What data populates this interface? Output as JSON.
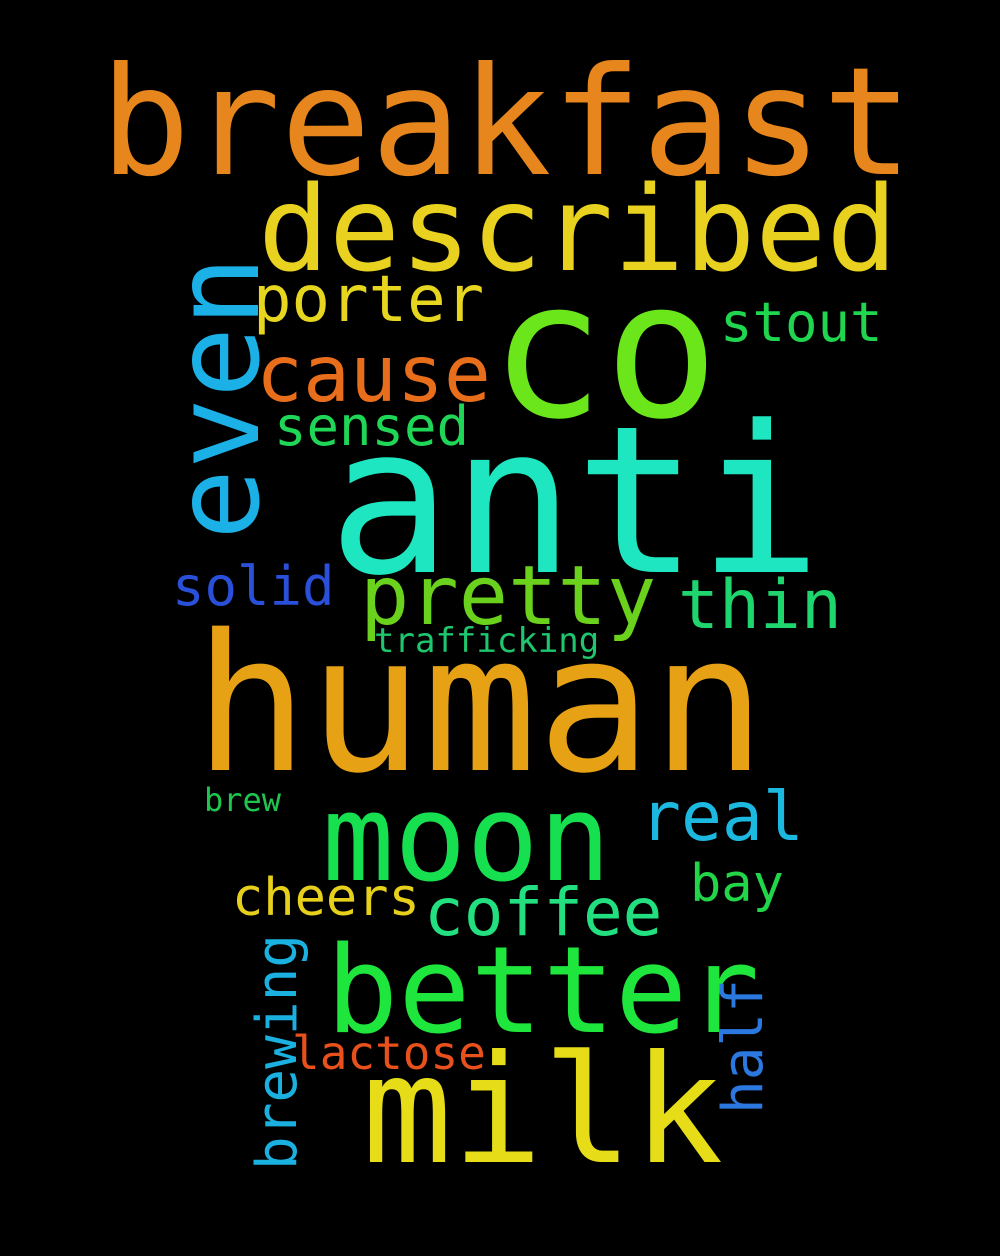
{
  "words": [
    {
      "text": "breakfast",
      "color": "#e6861c",
      "orientation": "horizontal"
    },
    {
      "text": "described",
      "color": "#e8d11f",
      "orientation": "horizontal"
    },
    {
      "text": "even",
      "color": "#1cb1e6",
      "orientation": "vertical"
    },
    {
      "text": "co",
      "color": "#6ae61a",
      "orientation": "horizontal"
    },
    {
      "text": "porter",
      "color": "#e6d61f",
      "orientation": "horizontal"
    },
    {
      "text": "stout",
      "color": "#20d64f",
      "orientation": "horizontal"
    },
    {
      "text": "cause",
      "color": "#e86e1c",
      "orientation": "horizontal"
    },
    {
      "text": "sensed",
      "color": "#1fd656",
      "orientation": "horizontal"
    },
    {
      "text": "anti",
      "color": "#1ee6c0",
      "orientation": "horizontal"
    },
    {
      "text": "solid",
      "color": "#2a4fd8",
      "orientation": "horizontal"
    },
    {
      "text": "pretty",
      "color": "#6ad11c",
      "orientation": "horizontal"
    },
    {
      "text": "thin",
      "color": "#1fd66e",
      "orientation": "horizontal"
    },
    {
      "text": "trafficking",
      "color": "#1ec66e",
      "orientation": "horizontal"
    },
    {
      "text": "human",
      "color": "#e6a114",
      "orientation": "horizontal"
    },
    {
      "text": "brew",
      "color": "#1ec650",
      "orientation": "horizontal"
    },
    {
      "text": "moon",
      "color": "#17e050",
      "orientation": "horizontal"
    },
    {
      "text": "real",
      "color": "#1cb8e0",
      "orientation": "horizontal"
    },
    {
      "text": "bay",
      "color": "#22d64a",
      "orientation": "horizontal"
    },
    {
      "text": "cheers",
      "color": "#e6d01c",
      "orientation": "horizontal"
    },
    {
      "text": "coffee",
      "color": "#22e080",
      "orientation": "horizontal"
    },
    {
      "text": "brewing",
      "color": "#1ab0e0",
      "orientation": "vertical"
    },
    {
      "text": "better",
      "color": "#1ee63c",
      "orientation": "horizontal"
    },
    {
      "text": "half",
      "color": "#2a78e0",
      "orientation": "vertical"
    },
    {
      "text": "lactose",
      "color": "#e8501c",
      "orientation": "horizontal"
    },
    {
      "text": "milk",
      "color": "#e6dc17",
      "orientation": "horizontal"
    }
  ]
}
